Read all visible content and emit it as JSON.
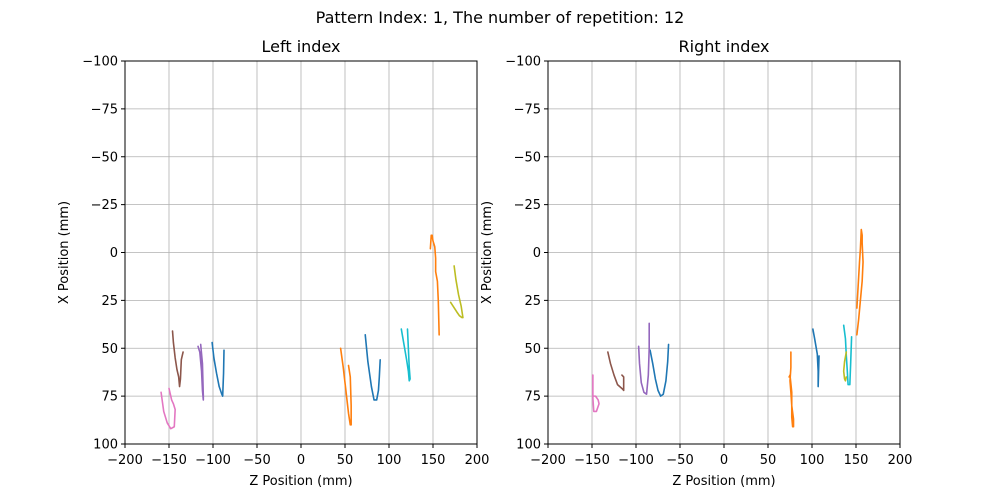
{
  "figure_title": "Pattern Index: 1, The number of repetition: 12",
  "colors": [
    "#1f77b4",
    "#ff7f0e",
    "#9467bd",
    "#8c564b",
    "#e377c2",
    "#bcbd22",
    "#17becf"
  ],
  "chart_data": [
    {
      "type": "line",
      "title": "Left index",
      "xlabel": "Z Position (mm)",
      "ylabel": "X Position (mm)",
      "xlim": [
        -200,
        200
      ],
      "ylim": [
        -100,
        100
      ],
      "y_inverted": true,
      "grid": true,
      "xticks": [
        -200,
        -150,
        -100,
        -50,
        0,
        50,
        100,
        150,
        200
      ],
      "yticks": [
        -100,
        -75,
        -50,
        -25,
        0,
        25,
        50,
        75,
        100
      ],
      "xtick_labels": [
        "−200",
        "−150",
        "−100",
        "−50",
        "0",
        "50",
        "100",
        "150",
        "200"
      ],
      "ytick_labels": [
        "−100",
        "−75",
        "−50",
        "−25",
        "0",
        "25",
        "50",
        "75",
        "100"
      ],
      "series": [
        {
          "color": "#1f77b4",
          "x": [
            -101,
            -99,
            -96,
            -93,
            -90,
            -89,
            -88,
            -87.5
          ],
          "y": [
            47,
            55,
            63,
            70,
            74,
            75,
            63,
            51
          ]
        },
        {
          "color": "#9467bd",
          "x": [
            -117,
            -115,
            -113,
            -112,
            -111,
            -111,
            -112,
            -114
          ],
          "y": [
            49,
            52,
            62,
            72,
            77,
            75,
            58,
            48
          ]
        },
        {
          "color": "#8c564b",
          "x": [
            -146,
            -145,
            -143,
            -141,
            -139,
            -138,
            -137,
            -136,
            -134
          ],
          "y": [
            41,
            47,
            55,
            61,
            65,
            70,
            66,
            56,
            52
          ]
        },
        {
          "color": "#e377c2",
          "x": [
            -159,
            -156,
            -152,
            -148,
            -144,
            -143,
            -145,
            -147,
            -150
          ],
          "y": [
            73,
            83,
            89,
            92,
            91,
            82,
            79,
            77,
            71
          ]
        },
        {
          "color": "#1f77b4",
          "x": [
            73,
            76,
            80,
            83,
            86,
            88,
            89,
            90
          ],
          "y": [
            43,
            57,
            70,
            77,
            77,
            72,
            65,
            56
          ]
        },
        {
          "color": "#ff7f0e",
          "x": [
            45,
            48,
            51,
            54,
            56,
            57,
            57,
            56,
            54
          ],
          "y": [
            50,
            60,
            72,
            84,
            90,
            90,
            80,
            65,
            59
          ]
        },
        {
          "color": "#17becf",
          "x": [
            114,
            117,
            120,
            122,
            123,
            124,
            123,
            122,
            121
          ],
          "y": [
            40,
            48,
            56,
            62,
            67,
            66,
            60,
            50,
            40
          ]
        },
        {
          "color": "#ff7f0e",
          "x": [
            147,
            148,
            149,
            150,
            152,
            153,
            153,
            155,
            156,
            157
          ],
          "y": [
            -2,
            -9,
            -9,
            -6,
            -3,
            3,
            10,
            15,
            25,
            43
          ]
        },
        {
          "color": "#bcbd22",
          "x": [
            174,
            176,
            179,
            182,
            184,
            183,
            180,
            177,
            170
          ],
          "y": [
            7,
            14,
            22,
            28,
            34,
            34,
            33,
            31,
            26
          ]
        }
      ]
    },
    {
      "type": "line",
      "title": "Right index",
      "xlabel": "Z Position (mm)",
      "ylabel": "X Position (mm)",
      "xlim": [
        -200,
        200
      ],
      "ylim": [
        -100,
        100
      ],
      "y_inverted": true,
      "grid": true,
      "xticks": [
        -200,
        -150,
        -100,
        -50,
        0,
        50,
        100,
        150,
        200
      ],
      "yticks": [
        -100,
        -75,
        -50,
        -25,
        0,
        25,
        50,
        75,
        100
      ],
      "xtick_labels": [
        "−200",
        "−150",
        "−100",
        "−50",
        "0",
        "50",
        "100",
        "150",
        "200"
      ],
      "ytick_labels": [
        "−100",
        "−75",
        "−50",
        "−25",
        "0",
        "25",
        "50",
        "75",
        "100"
      ],
      "series": [
        {
          "color": "#1f77b4",
          "x": [
            -84,
            -81,
            -78,
            -75,
            -72,
            -69,
            -66,
            -64,
            -63
          ],
          "y": [
            51,
            58,
            66,
            72,
            75,
            74,
            67,
            57,
            48
          ]
        },
        {
          "color": "#9467bd",
          "x": [
            -97,
            -96,
            -94,
            -91,
            -88,
            -86,
            -85,
            -85
          ],
          "y": [
            49,
            58,
            68,
            73,
            74,
            64,
            50,
            37
          ]
        },
        {
          "color": "#8c564b",
          "x": [
            -132,
            -129,
            -125,
            -121,
            -116,
            -114,
            -114,
            -116
          ],
          "y": [
            52,
            58,
            64,
            69,
            71,
            72,
            65,
            64
          ]
        },
        {
          "color": "#e377c2",
          "x": [
            -149,
            -149,
            -148,
            -145,
            -142,
            -143,
            -146,
            -149
          ],
          "y": [
            64,
            76,
            83,
            83,
            79,
            77,
            75,
            75
          ]
        },
        {
          "color": "#ff7f0e",
          "x": [
            76,
            76,
            75,
            76,
            77,
            79,
            79,
            78,
            77,
            77,
            75,
            74
          ],
          "y": [
            52,
            60,
            67,
            73,
            80,
            87,
            91,
            91,
            86,
            73,
            64,
            65
          ]
        },
        {
          "color": "#1f77b4",
          "x": [
            101,
            103,
            106,
            107,
            107,
            108
          ],
          "y": [
            40,
            45,
            53,
            62,
            70,
            54
          ]
        },
        {
          "color": "#17becf",
          "x": [
            136,
            138,
            139,
            140,
            141,
            143,
            144,
            145
          ],
          "y": [
            38,
            45,
            54,
            61,
            69,
            69,
            57,
            44
          ]
        },
        {
          "color": "#bcbd22",
          "x": [
            139,
            137,
            136,
            137,
            138,
            139
          ],
          "y": [
            52,
            57,
            62,
            66,
            67,
            65
          ]
        },
        {
          "color": "#ff7f0e",
          "x": [
            151,
            153,
            155,
            157,
            158,
            157,
            157,
            156,
            155,
            154,
            153,
            152,
            151
          ],
          "y": [
            43,
            35,
            25,
            15,
            5,
            -5,
            -9,
            -12,
            -2,
            5,
            13,
            21,
            29
          ]
        }
      ]
    }
  ]
}
